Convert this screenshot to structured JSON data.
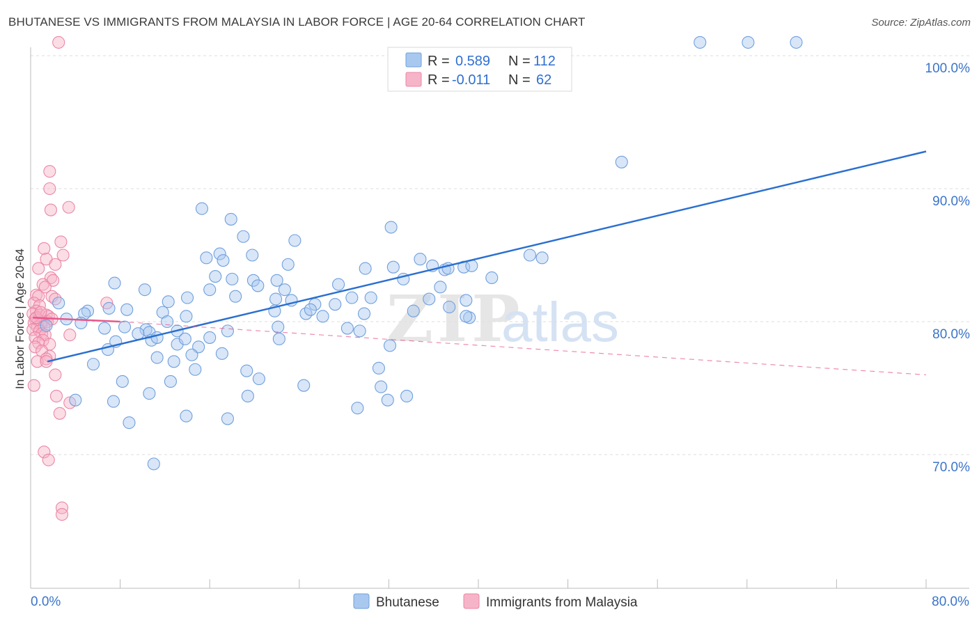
{
  "title": "BHUTANESE VS IMMIGRANTS FROM MALAYSIA IN LABOR FORCE | AGE 20-64 CORRELATION CHART",
  "source": "Source: ZipAtlas.com",
  "watermark": {
    "zip": "ZIP",
    "atlas": "atlas"
  },
  "colors": {
    "blue_fill": "#a9c8f0",
    "blue_stroke": "#6f9fdd",
    "blue_line": "#2a6fd0",
    "pink_fill": "#f6b4c8",
    "pink_stroke": "#ec86a6",
    "pink_line": "#e8578a",
    "grid": "#dddddd",
    "axis_text": "#3a74c9"
  },
  "legend": {
    "rows": [
      {
        "r_label": "R =",
        "r_value": "0.589",
        "n_label": "N =",
        "n_value": "112"
      },
      {
        "r_label": "R =",
        "r_value": "-0.011",
        "n_label": "N =",
        "n_value": "62"
      }
    ]
  },
  "chart_data": {
    "type": "scatter",
    "title": "BHUTANESE VS IMMIGRANTS FROM MALAYSIA IN LABOR FORCE | AGE 20-64 CORRELATION CHART",
    "xlabel": "",
    "ylabel": "In Labor Force | Age 20-64",
    "xlim": [
      0,
      80
    ],
    "ylim": [
      60.5,
      101.5
    ],
    "x_tick_labels": [
      "0.0%",
      "80.0%"
    ],
    "y_ticks": [
      70,
      80,
      90,
      100
    ],
    "y_tick_labels": [
      "70.0%",
      "80.0%",
      "90.0%",
      "100.0%"
    ],
    "series": [
      {
        "name": "Bhutanese",
        "r": 0.589,
        "n": 112,
        "trend": {
          "x": [
            1.5,
            80
          ],
          "y": [
            77.0,
            92.8
          ]
        },
        "points": [
          [
            59.8,
            101.0
          ],
          [
            64.1,
            101.0
          ],
          [
            68.4,
            101.0
          ],
          [
            52.8,
            92.0
          ],
          [
            15.3,
            88.5
          ],
          [
            19.0,
            86.4
          ],
          [
            23.6,
            86.1
          ],
          [
            32.2,
            87.1
          ],
          [
            15.7,
            84.8
          ],
          [
            16.9,
            85.1
          ],
          [
            17.2,
            84.6
          ],
          [
            23.0,
            84.3
          ],
          [
            29.9,
            84.0
          ],
          [
            32.4,
            84.1
          ],
          [
            34.8,
            84.7
          ],
          [
            35.9,
            84.2
          ],
          [
            37.0,
            83.9
          ],
          [
            37.3,
            84.0
          ],
          [
            38.7,
            84.1
          ],
          [
            39.4,
            84.2
          ],
          [
            41.2,
            83.3
          ],
          [
            44.6,
            85.0
          ],
          [
            45.7,
            84.8
          ],
          [
            18.0,
            83.2
          ],
          [
            19.9,
            83.1
          ],
          [
            22.0,
            83.1
          ],
          [
            20.3,
            82.7
          ],
          [
            16.0,
            82.4
          ],
          [
            22.7,
            82.4
          ],
          [
            27.5,
            82.8
          ],
          [
            33.3,
            83.2
          ],
          [
            36.6,
            82.6
          ],
          [
            10.2,
            82.4
          ],
          [
            7.5,
            82.9
          ],
          [
            18.3,
            81.9
          ],
          [
            12.3,
            81.5
          ],
          [
            23.3,
            81.6
          ],
          [
            25.4,
            81.3
          ],
          [
            27.2,
            81.3
          ],
          [
            28.7,
            81.8
          ],
          [
            30.4,
            81.8
          ],
          [
            26.1,
            80.4
          ],
          [
            24.6,
            80.6
          ],
          [
            37.4,
            81.1
          ],
          [
            38.9,
            81.6
          ],
          [
            39.2,
            80.3
          ],
          [
            34.2,
            80.8
          ],
          [
            38.9,
            80.4
          ],
          [
            2.5,
            81.4
          ],
          [
            5.1,
            80.8
          ],
          [
            4.8,
            80.6
          ],
          [
            7.0,
            81.0
          ],
          [
            8.6,
            80.9
          ],
          [
            11.8,
            80.7
          ],
          [
            12.2,
            80.0
          ],
          [
            13.9,
            80.4
          ],
          [
            3.2,
            80.2
          ],
          [
            4.5,
            79.9
          ],
          [
            6.6,
            79.5
          ],
          [
            1.4,
            79.7
          ],
          [
            8.4,
            79.6
          ],
          [
            10.3,
            79.4
          ],
          [
            10.6,
            79.2
          ],
          [
            13.1,
            79.3
          ],
          [
            16.0,
            78.8
          ],
          [
            17.6,
            79.3
          ],
          [
            22.1,
            79.6
          ],
          [
            22.2,
            78.7
          ],
          [
            28.3,
            79.5
          ],
          [
            29.4,
            79.3
          ],
          [
            7.6,
            78.5
          ],
          [
            9.6,
            79.1
          ],
          [
            10.8,
            78.6
          ],
          [
            11.3,
            78.8
          ],
          [
            13.1,
            78.3
          ],
          [
            13.8,
            78.7
          ],
          [
            15.0,
            78.1
          ],
          [
            17.1,
            77.6
          ],
          [
            32.1,
            78.2
          ],
          [
            14.4,
            77.5
          ],
          [
            12.8,
            77.0
          ],
          [
            11.3,
            77.3
          ],
          [
            5.6,
            76.8
          ],
          [
            14.7,
            76.4
          ],
          [
            19.3,
            76.3
          ],
          [
            31.1,
            76.5
          ],
          [
            20.4,
            75.7
          ],
          [
            8.2,
            75.5
          ],
          [
            12.5,
            75.5
          ],
          [
            24.4,
            75.2
          ],
          [
            31.3,
            75.1
          ],
          [
            10.6,
            74.6
          ],
          [
            19.4,
            74.4
          ],
          [
            33.6,
            74.4
          ],
          [
            4.0,
            74.1
          ],
          [
            7.4,
            74.0
          ],
          [
            31.9,
            74.1
          ],
          [
            29.2,
            73.5
          ],
          [
            13.9,
            72.9
          ],
          [
            17.6,
            72.7
          ],
          [
            8.8,
            72.4
          ],
          [
            11.0,
            69.3
          ],
          [
            19.8,
            85.0
          ],
          [
            17.9,
            87.7
          ],
          [
            16.5,
            83.4
          ],
          [
            25.0,
            80.9
          ],
          [
            21.9,
            81.7
          ],
          [
            21.8,
            80.8
          ],
          [
            35.6,
            81.7
          ],
          [
            29.8,
            80.6
          ],
          [
            6.9,
            77.9
          ],
          [
            14.0,
            81.8
          ]
        ]
      },
      {
        "name": "Immigrants from Malaysia",
        "r": -0.011,
        "n": 62,
        "trend": {
          "x": [
            0.2,
            8.0
          ],
          "y": [
            80.3,
            80.0
          ]
        },
        "trend_dashed": {
          "x": [
            8.0,
            80
          ],
          "y": [
            80.0,
            76.0
          ]
        },
        "points": [
          [
            2.5,
            101.0
          ],
          [
            1.7,
            91.3
          ],
          [
            1.7,
            90.0
          ],
          [
            1.8,
            88.4
          ],
          [
            3.4,
            88.6
          ],
          [
            2.7,
            86.0
          ],
          [
            1.2,
            85.5
          ],
          [
            2.9,
            85.0
          ],
          [
            1.4,
            84.7
          ],
          [
            2.2,
            84.3
          ],
          [
            0.7,
            84.0
          ],
          [
            1.8,
            83.3
          ],
          [
            2.0,
            83.1
          ],
          [
            1.1,
            82.8
          ],
          [
            1.3,
            82.6
          ],
          [
            0.5,
            82.0
          ],
          [
            0.7,
            81.9
          ],
          [
            1.9,
            81.9
          ],
          [
            2.2,
            81.7
          ],
          [
            6.8,
            81.4
          ],
          [
            0.3,
            81.4
          ],
          [
            0.8,
            81.2
          ],
          [
            0.5,
            80.8
          ],
          [
            0.2,
            80.6
          ],
          [
            0.8,
            80.5
          ],
          [
            1.4,
            80.5
          ],
          [
            1.6,
            80.4
          ],
          [
            0.4,
            80.2
          ],
          [
            0.7,
            80.1
          ],
          [
            1.1,
            80.0
          ],
          [
            1.5,
            80.0
          ],
          [
            0.3,
            79.9
          ],
          [
            0.9,
            79.8
          ],
          [
            0.6,
            79.6
          ],
          [
            1.2,
            79.6
          ],
          [
            0.2,
            79.4
          ],
          [
            0.8,
            79.3
          ],
          [
            1.0,
            79.1
          ],
          [
            1.3,
            79.0
          ],
          [
            3.5,
            79.0
          ],
          [
            0.4,
            78.8
          ],
          [
            1.1,
            78.6
          ],
          [
            0.7,
            78.4
          ],
          [
            1.7,
            78.3
          ],
          [
            0.4,
            78.1
          ],
          [
            1.0,
            77.8
          ],
          [
            1.7,
            77.4
          ],
          [
            1.4,
            77.2
          ],
          [
            0.6,
            77.0
          ],
          [
            1.4,
            77.0
          ],
          [
            2.2,
            76.0
          ],
          [
            0.3,
            75.2
          ],
          [
            2.3,
            74.4
          ],
          [
            3.5,
            73.9
          ],
          [
            2.6,
            73.1
          ],
          [
            1.2,
            70.2
          ],
          [
            1.6,
            69.6
          ],
          [
            2.8,
            66.0
          ],
          [
            2.8,
            65.5
          ],
          [
            0.5,
            80.3
          ],
          [
            1.9,
            80.2
          ],
          [
            0.9,
            80.7
          ]
        ]
      }
    ]
  }
}
